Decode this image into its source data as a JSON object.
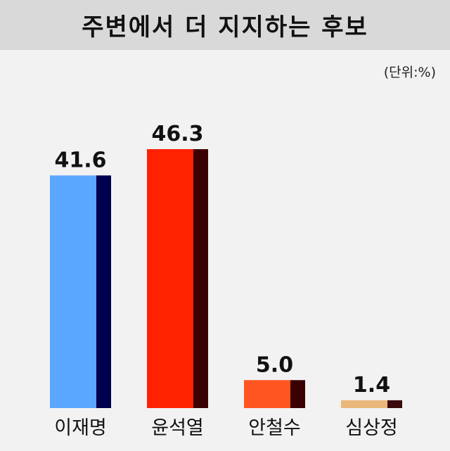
{
  "header": {
    "title": "주변에서 더 지지하는 후보"
  },
  "unit_label": "(단위:%)",
  "chart_data": {
    "type": "bar",
    "title": "주변에서 더 지지하는 후보",
    "unit": "(단위:%)",
    "categories": [
      "이재명",
      "윤석열",
      "안철수",
      "심상정"
    ],
    "values": [
      41.6,
      46.3,
      5.0,
      1.4
    ],
    "value_labels": [
      "41.6",
      "46.3",
      "5.0",
      "1.4"
    ],
    "ylim": [
      0,
      50
    ],
    "grid": false,
    "colors": [
      {
        "face": "#5aa7ff",
        "side": "#000050"
      },
      {
        "face": "#ff2200",
        "side": "#3d0000"
      },
      {
        "face": "#ff5520",
        "side": "#3a0000"
      },
      {
        "face": "#ebb87c",
        "side": "#3a0a0a"
      }
    ]
  }
}
